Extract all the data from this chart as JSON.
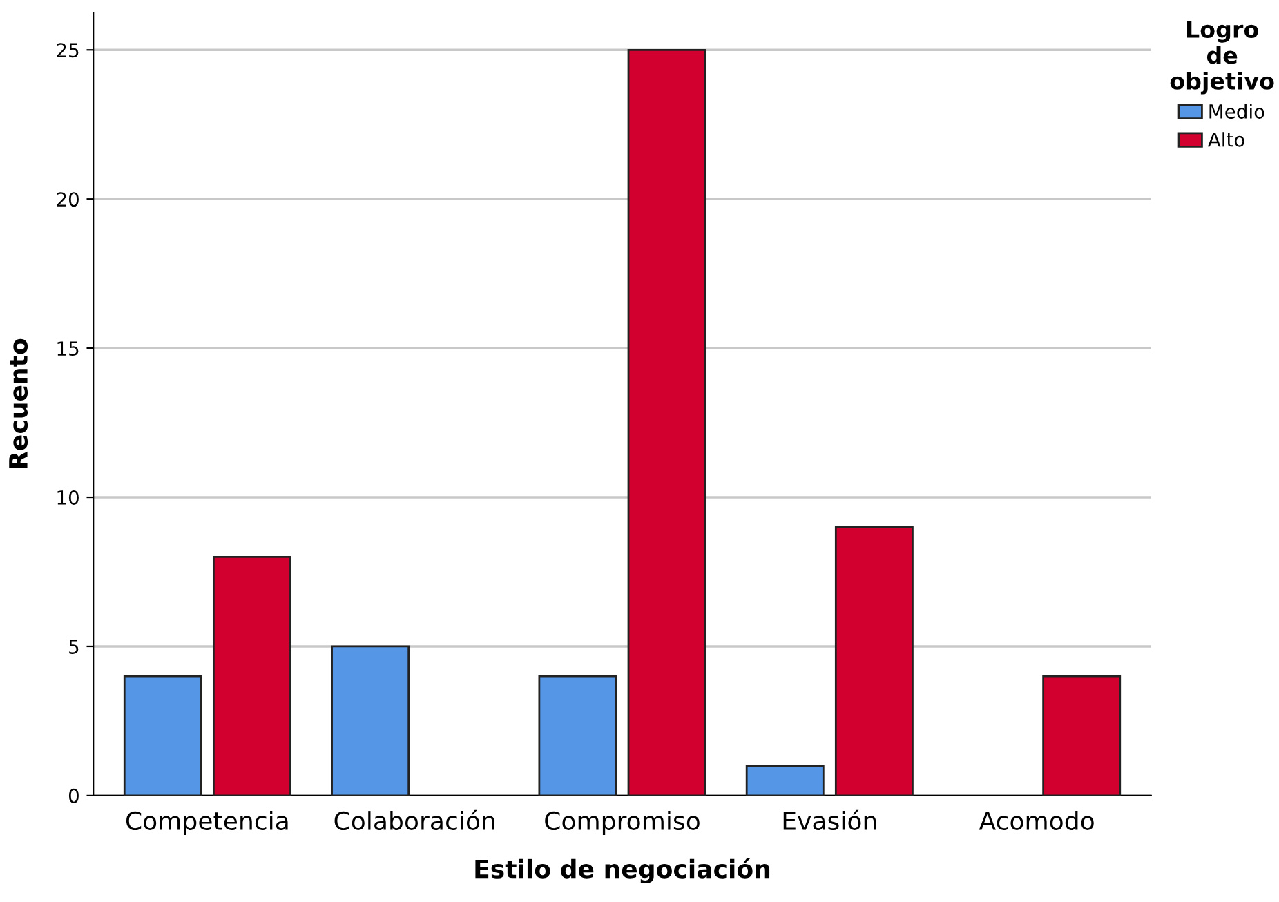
{
  "chart_data": {
    "type": "bar",
    "xlabel": "Estilo de negociación",
    "ylabel": "Recuento",
    "categories": [
      "Competencia",
      "Colaboración",
      "Compromiso",
      "Evasión",
      "Acomodo"
    ],
    "series": [
      {
        "name": "Medio",
        "color": "#5596e6",
        "values": [
          4,
          5,
          4,
          1,
          null
        ]
      },
      {
        "name": "Alto",
        "color": "#d2002e",
        "values": [
          8,
          null,
          25,
          9,
          4
        ]
      }
    ],
    "ylim": [
      0,
      26.25
    ],
    "yticks": [
      0,
      5,
      10,
      15,
      20,
      25
    ],
    "grid": "y",
    "legend": "top right",
    "legend_title": "Logro\nde\nobjetivo"
  }
}
